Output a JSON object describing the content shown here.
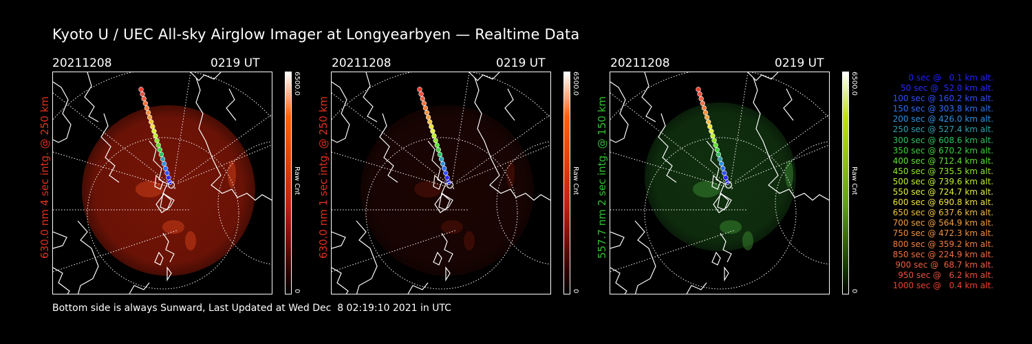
{
  "title": "Kyoto U / UEC All-sky Airglow Imager at Longyearbyen — Realtime Data",
  "footer": "Bottom side is always Sunward, Last Updated at Wed Dec  8 02:19:10 2021 in UTC",
  "panels": [
    {
      "date": "20211208",
      "time": "0219 UT",
      "side_label": "630.0 nm 4 sec intg. @ 250 km",
      "label_color": "#e03020",
      "cbar_max": "6500.0",
      "cbar_min": "0",
      "cbar_unit": "Raw Cnt",
      "glow_color": "#8a1808",
      "glow_level": 0.85
    },
    {
      "date": "20211208",
      "time": "0219 UT",
      "side_label": "630.0 nm 1 sec intg. @ 250 km",
      "label_color": "#e03020",
      "cbar_max": "6500.0",
      "cbar_min": "0",
      "cbar_unit": "Raw Cnt",
      "glow_color": "#3a0a04",
      "glow_level": 0.45
    },
    {
      "date": "20211208",
      "time": "0219 UT",
      "side_label": "557.7 nm 2 sec intg. @ 150 km",
      "label_color": "#30c030",
      "cbar_max": "6500.0",
      "cbar_min": "0",
      "cbar_unit": "Raw Cnt",
      "glow_color": "#1a5018",
      "glow_level": 0.6
    }
  ],
  "trajectory_legend": [
    {
      "text": "0 sec @   0.1 km alt.",
      "color": "#2020ff"
    },
    {
      "text": "50 sec @  52.0 km alt.",
      "color": "#2a2aff"
    },
    {
      "text": "100 sec @ 160.2 km alt.",
      "color": "#3050ff"
    },
    {
      "text": "150 sec @ 303.8 km alt.",
      "color": "#3070f0"
    },
    {
      "text": "200 sec @ 426.0 km alt.",
      "color": "#3090e0"
    },
    {
      "text": "250 sec @ 527.4 km alt.",
      "color": "#30a0b0"
    },
    {
      "text": "300 sec @ 608.6 km alt.",
      "color": "#30c060"
    },
    {
      "text": "350 sec @ 670.2 km alt.",
      "color": "#40d040"
    },
    {
      "text": "400 sec @ 712.4 km alt.",
      "color": "#60e030"
    },
    {
      "text": "450 sec @ 735.5 km alt.",
      "color": "#90e830"
    },
    {
      "text": "500 sec @ 739.6 km alt.",
      "color": "#c0f030"
    },
    {
      "text": "550 sec @ 724.7 km alt.",
      "color": "#e0f040"
    },
    {
      "text": "600 sec @ 690.8 km alt.",
      "color": "#f0e040"
    },
    {
      "text": "650 sec @ 637.6 km alt.",
      "color": "#f0c040"
    },
    {
      "text": "700 sec @ 564.9 km alt.",
      "color": "#f0a040"
    },
    {
      "text": "750 sec @ 472.3 km alt.",
      "color": "#f09040"
    },
    {
      "text": "800 sec @ 359.2 km alt.",
      "color": "#f08040"
    },
    {
      "text": "850 sec @ 224.9 km alt.",
      "color": "#f07040"
    },
    {
      "text": "900 sec @  68.7 km alt.",
      "color": "#f06040"
    },
    {
      "text": "950 sec @   6.2 km alt.",
      "color": "#f05040"
    },
    {
      "text": "1000 sec @   0.4 km alt.",
      "color": "#f04030"
    }
  ]
}
